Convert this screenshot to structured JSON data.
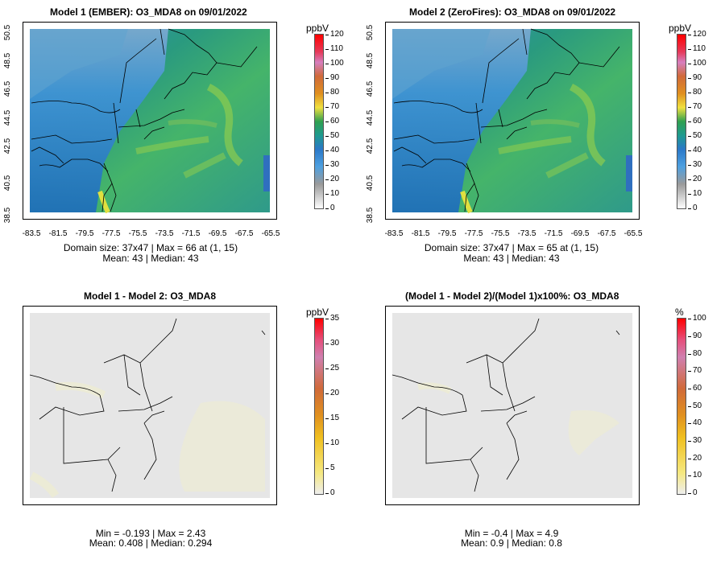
{
  "panels": [
    {
      "title": "Model 1 (EMBER): O3_MDA8 on 09/01/2022",
      "unit": "ppbV",
      "stat_line1": "Domain size: 37x47 | Max = 66 at (1, 15)",
      "stat_line2": "Mean: 43 |  Median: 43",
      "colorbar_ticks": [
        "120",
        "110",
        "100",
        "90",
        "80",
        "70",
        "60",
        "50",
        "40",
        "30",
        "20",
        "10",
        "0"
      ],
      "y_ticks": [
        "50.5",
        "48.5",
        "46.5",
        "44.5",
        "42.5",
        "40.5",
        "38.5"
      ],
      "x_ticks": [
        "-83.5",
        "-81.5",
        "-79.5",
        "-77.5",
        "-75.5",
        "-73.5",
        "-71.5",
        "-69.5",
        "-67.5",
        "-65.5"
      ]
    },
    {
      "title": "Model 2 (ZeroFires): O3_MDA8 on 09/01/2022",
      "unit": "ppbV",
      "stat_line1": "Domain size: 37x47 | Max = 65 at (1, 15)",
      "stat_line2": "Mean: 43 |  Median: 43",
      "colorbar_ticks": [
        "120",
        "110",
        "100",
        "90",
        "80",
        "70",
        "60",
        "50",
        "40",
        "30",
        "20",
        "10",
        "0"
      ],
      "y_ticks": [
        "50.5",
        "48.5",
        "46.5",
        "44.5",
        "42.5",
        "40.5",
        "38.5"
      ],
      "x_ticks": [
        "-83.5",
        "-81.5",
        "-79.5",
        "-77.5",
        "-75.5",
        "-73.5",
        "-71.5",
        "-69.5",
        "-67.5",
        "-65.5"
      ]
    },
    {
      "title": "Model 1 - Model 2: O3_MDA8",
      "unit": "ppbV",
      "stat_line1": "Min = -0.193 | Max = 2.43",
      "stat_line2": "Mean: 0.408 |  Median: 0.294",
      "colorbar_ticks": [
        "35",
        "30",
        "25",
        "20",
        "15",
        "10",
        "5",
        "0"
      ]
    },
    {
      "title": "(Model 1 - Model 2)/(Model 1)x100%: O3_MDA8",
      "unit": "%",
      "stat_line1": "Min = -0.4 | Max = 4.9",
      "stat_line2": "Mean: 0.9 |  Median: 0.8",
      "colorbar_ticks": [
        "100",
        "90",
        "80",
        "70",
        "60",
        "50",
        "40",
        "30",
        "20",
        "10",
        "0"
      ]
    }
  ],
  "colors": {
    "ocean_green": "#3fae6f",
    "land_blue": "#3a90cf",
    "diff_bg": "#e6e6e6"
  }
}
